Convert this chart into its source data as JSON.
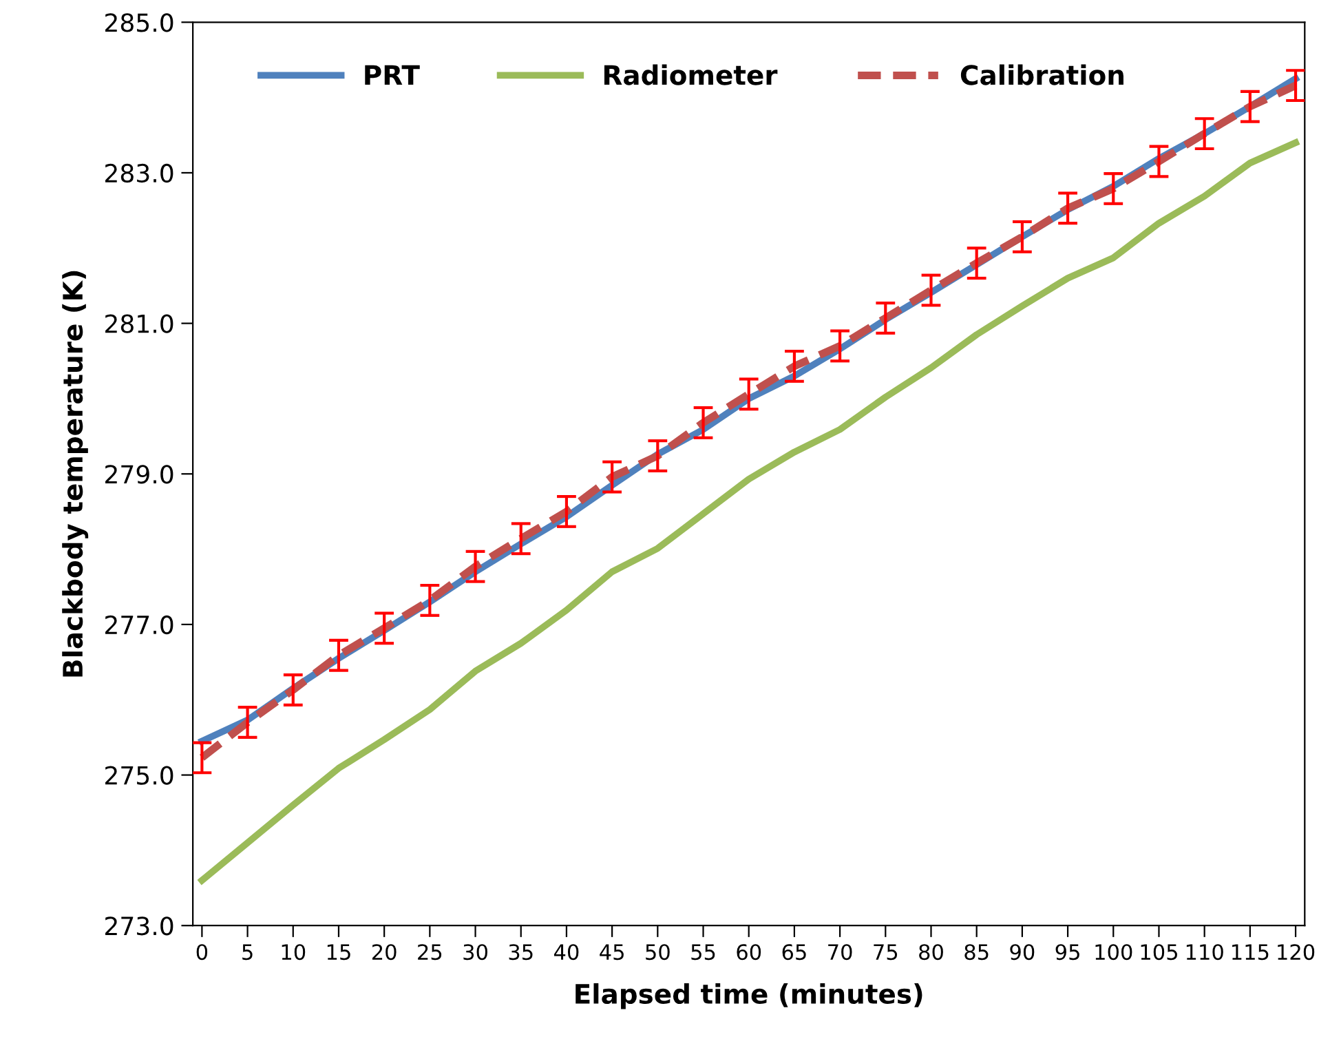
{
  "chart_data": {
    "type": "line",
    "xlabel": "Elapsed time (minutes)",
    "ylabel": "Blackbody temperature (K)",
    "categories": [
      "0",
      "5",
      "10",
      "15",
      "20",
      "25",
      "30",
      "35",
      "40",
      "45",
      "50",
      "55",
      "60",
      "65",
      "70",
      "75",
      "80",
      "85",
      "90",
      "95",
      "100",
      "105",
      "110",
      "115",
      "120"
    ],
    "ylim": [
      273,
      285
    ],
    "yticks": [
      {
        "value": 273,
        "label": "273.0"
      },
      {
        "value": 275,
        "label": "275.0"
      },
      {
        "value": 277,
        "label": "277.0"
      },
      {
        "value": 279,
        "label": "279.0"
      },
      {
        "value": 281,
        "label": "281.0"
      },
      {
        "value": 283,
        "label": "283.0"
      },
      {
        "value": 285,
        "label": "285.0"
      }
    ],
    "grid": false,
    "legend": "top",
    "marker": "none",
    "series": [
      {
        "name": "PRT",
        "color": "#4f81bd",
        "line_style": "solid",
        "values": [
          275.45,
          275.73,
          276.15,
          276.55,
          276.92,
          277.3,
          277.7,
          278.07,
          278.43,
          278.85,
          279.26,
          279.59,
          280.0,
          280.3,
          280.66,
          281.05,
          281.41,
          281.78,
          282.15,
          282.51,
          282.82,
          283.19,
          283.52,
          283.88,
          284.25
        ]
      },
      {
        "name": "Radiometer",
        "color": "#9bbb59",
        "line_style": "solid",
        "values": [
          273.6,
          274.1,
          274.6,
          275.09,
          275.47,
          275.87,
          276.38,
          276.75,
          277.19,
          277.7,
          278.01,
          278.47,
          278.93,
          279.29,
          279.59,
          280.02,
          280.41,
          280.85,
          281.23,
          281.6,
          281.87,
          282.33,
          282.69,
          283.13,
          283.4
        ]
      },
      {
        "name": "Calibration",
        "color": "#c0504d",
        "line_style": "dashed",
        "values": [
          275.23,
          275.7,
          276.13,
          276.59,
          276.95,
          277.32,
          277.77,
          278.14,
          278.5,
          278.96,
          279.24,
          279.68,
          280.06,
          280.43,
          280.7,
          281.07,
          281.44,
          281.8,
          282.15,
          282.53,
          282.79,
          283.15,
          283.52,
          283.88,
          284.16
        ],
        "errors": [
          0.2,
          0.2,
          0.2,
          0.2,
          0.2,
          0.2,
          0.2,
          0.2,
          0.2,
          0.2,
          0.2,
          0.2,
          0.2,
          0.2,
          0.2,
          0.2,
          0.2,
          0.2,
          0.2,
          0.2,
          0.2,
          0.2,
          0.2,
          0.2,
          0.2
        ]
      }
    ]
  }
}
